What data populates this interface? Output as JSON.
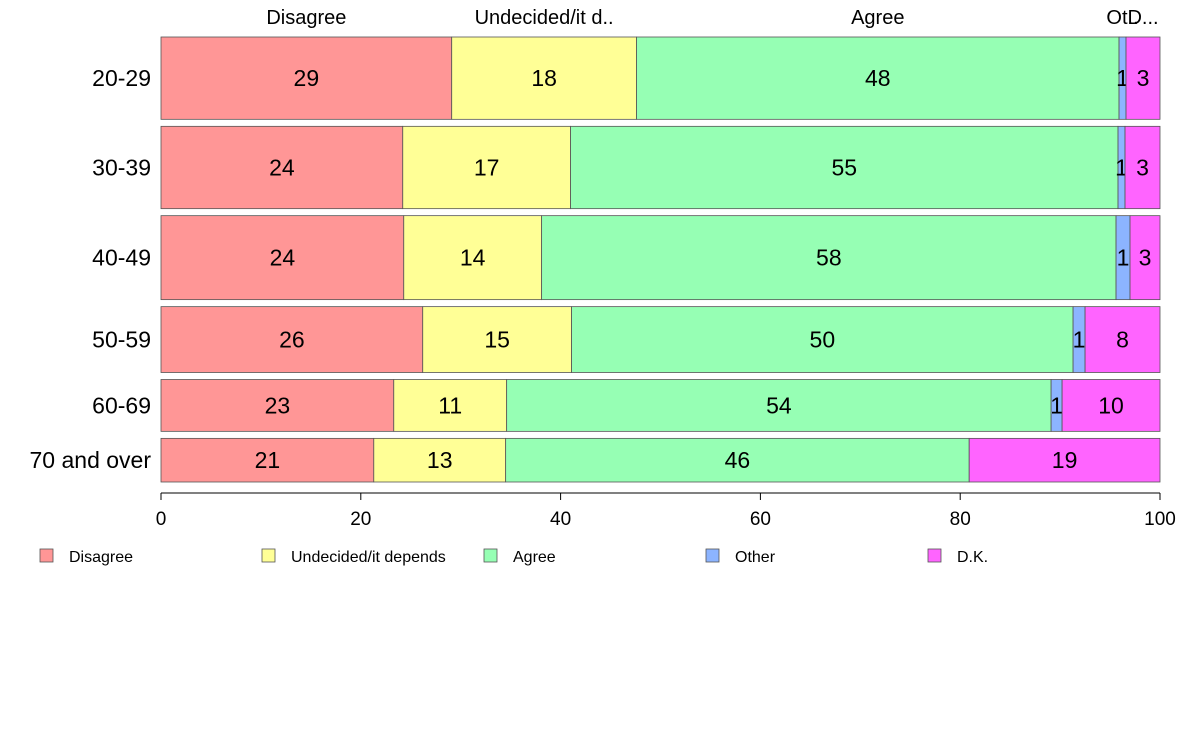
{
  "chart_data": {
    "type": "bar",
    "orientation": "horizontal",
    "stacked": true,
    "categories": [
      "20-29",
      "30-39",
      "40-49",
      "50-59",
      "60-69",
      "70 and over"
    ],
    "row_heights_relative": [
      1.0,
      1.0,
      1.02,
      0.8,
      0.63,
      0.53
    ],
    "series": [
      {
        "name": "Disagree",
        "color": "#ff9696",
        "values": [
          29.1,
          24.2,
          24.3,
          26.2,
          23.3,
          21.3
        ],
        "labels": [
          "29",
          "24",
          "24",
          "26",
          "23",
          "21"
        ]
      },
      {
        "name": "Undecided/it depends",
        "color": "#ffff96",
        "values": [
          18.5,
          16.8,
          13.8,
          14.9,
          11.3,
          13.2
        ],
        "labels": [
          "18",
          "17",
          "14",
          "15",
          "11",
          "13"
        ]
      },
      {
        "name": "Agree",
        "color": "#96ffb4",
        "values": [
          48.3,
          54.8,
          57.5,
          50.2,
          54.5,
          46.4
        ],
        "labels": [
          "48",
          "55",
          "58",
          "50",
          "54",
          "46"
        ]
      },
      {
        "name": "Other",
        "color": "#8cb4ff",
        "values": [
          0.7,
          0.7,
          1.4,
          1.2,
          1.1,
          0.0
        ],
        "labels": [
          "1",
          "1",
          "1",
          "1",
          "1",
          ""
        ]
      },
      {
        "name": "D.K.",
        "color": "#ff64ff",
        "values": [
          3.4,
          3.5,
          3.0,
          7.5,
          9.8,
          19.1
        ],
        "labels": [
          "3",
          "3",
          "3",
          "8",
          "10",
          "19"
        ]
      }
    ],
    "top_labels": [
      "Disagree",
      "Undecided/it d..",
      "Agree",
      "Ot..",
      "D..."
    ],
    "xlim": [
      0,
      100
    ],
    "x_ticks": [
      "0",
      "20",
      "40",
      "60",
      "80",
      "100"
    ],
    "grid": false,
    "legend_position": "bottom"
  }
}
